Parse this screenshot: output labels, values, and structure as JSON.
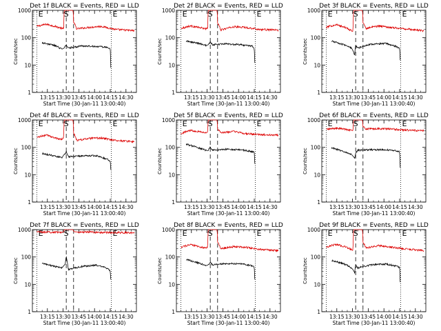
{
  "chart_data": {
    "type": "line",
    "layout": "3x3 grid",
    "y_scale": "log",
    "ylim": [
      1,
      1000
    ],
    "y_ticks": [
      1,
      10,
      100,
      1000
    ],
    "y_tick_labels": [
      "1",
      "10",
      "100",
      "1000"
    ],
    "ylabel": "Counts/sec",
    "xlabel": "Start Time (30-Jan-11 13:00:40)",
    "x_units": "minutes after 13:00",
    "xlim": [
      0.67,
      100
    ],
    "x_ticks": [
      15,
      30,
      45,
      60,
      75,
      90
    ],
    "x_tick_labels": [
      "13:15",
      "13:30",
      "13:45",
      "14:00",
      "14:15",
      "14:30"
    ],
    "markers": [
      {
        "label": "E",
        "x": 5,
        "style": "dotted"
      },
      {
        "label": "S",
        "x": 33,
        "style": "dashed"
      },
      {
        "label": "",
        "x": 40,
        "style": "dashed"
      },
      {
        "label": "E",
        "x": 76,
        "style": "dotted"
      }
    ],
    "colors": {
      "events": "#000000",
      "lld": "#dd0000"
    },
    "panels": [
      {
        "title": "Det 1f BLACK = Events, RED = LLD",
        "events": {
          "x": [
            10,
            22,
            29,
            31,
            32,
            33,
            35,
            48,
            62,
            73,
            75,
            75.5
          ],
          "y": [
            65,
            52,
            38,
            42,
            48,
            55,
            42,
            50,
            48,
            44,
            38,
            8
          ]
        },
        "lld": {
          "x": [
            5,
            14,
            24,
            29.5,
            30,
            30.5,
            31,
            39.5,
            40,
            43,
            55,
            66,
            80,
            98
          ],
          "y": [
            260,
            310,
            250,
            215,
            240,
            160,
            1000,
            1000,
            360,
            210,
            240,
            260,
            200,
            180
          ]
        }
      },
      {
        "title": "Det 2f BLACK = Events, RED = LLD",
        "events": {
          "x": [
            10,
            22,
            29,
            31,
            32,
            33,
            35,
            48,
            62,
            73,
            75,
            75.5
          ],
          "y": [
            75,
            62,
            52,
            55,
            62,
            70,
            55,
            60,
            55,
            50,
            42,
            12
          ]
        },
        "lld": {
          "x": [
            5,
            14,
            24,
            29.5,
            30,
            30.5,
            31,
            39.5,
            40,
            43,
            55,
            66,
            80,
            98
          ],
          "y": [
            220,
            270,
            230,
            210,
            240,
            170,
            1000,
            1000,
            340,
            190,
            250,
            240,
            200,
            190
          ]
        }
      },
      {
        "title": "Det 3f BLACK = Events, RED = LLD",
        "events": {
          "x": [
            10,
            22,
            29,
            31,
            32,
            33,
            35,
            48,
            62,
            73,
            75,
            75.5
          ],
          "y": [
            75,
            55,
            42,
            30,
            22,
            50,
            42,
            58,
            62,
            45,
            40,
            15
          ]
        },
        "lld": {
          "x": [
            5,
            14,
            24,
            29.5,
            30,
            30.5,
            31,
            39.5,
            40,
            43,
            55,
            66,
            80,
            98
          ],
          "y": [
            240,
            300,
            230,
            170,
            170,
            170,
            1000,
            1000,
            350,
            220,
            270,
            240,
            210,
            180
          ]
        }
      },
      {
        "title": "Det 4f BLACK = Events, RED = LLD",
        "events": {
          "x": [
            10,
            22,
            29,
            31,
            32,
            33,
            35,
            48,
            62,
            73,
            75,
            75.5
          ],
          "y": [
            60,
            48,
            42,
            55,
            60,
            70,
            45,
            48,
            50,
            35,
            32,
            15
          ]
        },
        "lld": {
          "x": [
            5,
            14,
            24,
            29.5,
            30,
            30.5,
            31,
            39.5,
            40,
            43,
            55,
            66,
            80,
            98
          ],
          "y": [
            230,
            280,
            210,
            200,
            230,
            200,
            1000,
            1000,
            330,
            180,
            210,
            220,
            180,
            160
          ]
        }
      },
      {
        "title": "Det 5f BLACK = Events, RED = LLD",
        "events": {
          "x": [
            10,
            22,
            29,
            31,
            32,
            33,
            35,
            48,
            62,
            73,
            75,
            75.5
          ],
          "y": [
            130,
            95,
            78,
            75,
            90,
            100,
            78,
            85,
            82,
            70,
            65,
            25
          ]
        },
        "lld": {
          "x": [
            5,
            14,
            24,
            29.5,
            30,
            30.5,
            31,
            39.5,
            40,
            43,
            55,
            66,
            80,
            98
          ],
          "y": [
            320,
            420,
            370,
            340,
            360,
            350,
            1000,
            1000,
            460,
            340,
            380,
            320,
            290,
            280
          ]
        }
      },
      {
        "title": "Det 6f BLACK = Events, RED = LLD",
        "events": {
          "x": [
            10,
            22,
            29,
            31,
            32,
            33,
            35,
            48,
            62,
            73,
            75,
            75.5
          ],
          "y": [
            95,
            70,
            55,
            45,
            40,
            60,
            78,
            82,
            82,
            72,
            68,
            18
          ]
        },
        "lld": {
          "x": [
            5,
            14,
            24,
            29.5,
            30,
            30.5,
            31,
            39.5,
            40,
            43,
            55,
            66,
            80,
            98
          ],
          "y": [
            450,
            500,
            460,
            420,
            400,
            420,
            1000,
            1000,
            560,
            470,
            480,
            470,
            430,
            400
          ]
        }
      },
      {
        "title": "Det 7f BLACK = Events, RED = LLD",
        "events": {
          "x": [
            10,
            22,
            29,
            31,
            32,
            33,
            35,
            48,
            62,
            73,
            75,
            75.5
          ],
          "y": [
            60,
            45,
            40,
            50,
            55,
            100,
            35,
            45,
            50,
            38,
            30,
            15
          ]
        },
        "lld": {
          "x": [
            5,
            14,
            24,
            29.5,
            30,
            30.5,
            31,
            39.5,
            40,
            43,
            55,
            66,
            80,
            98
          ],
          "y": [
            850,
            800,
            820,
            800,
            820,
            800,
            1000,
            1000,
            880,
            800,
            820,
            780,
            790,
            750
          ]
        }
      },
      {
        "title": "Det 8f BLACK = Events, RED = LLD",
        "events": {
          "x": [
            10,
            22,
            29,
            31,
            32,
            33,
            35,
            48,
            62,
            73,
            75,
            75.5
          ],
          "y": [
            80,
            60,
            48,
            52,
            58,
            65,
            52,
            58,
            56,
            48,
            42,
            15
          ]
        },
        "lld": {
          "x": [
            5,
            14,
            24,
            29.5,
            30,
            30.5,
            31,
            39.5,
            40,
            43,
            55,
            66,
            80,
            98
          ],
          "y": [
            230,
            280,
            230,
            210,
            240,
            200,
            1000,
            1000,
            350,
            200,
            240,
            230,
            190,
            170
          ]
        }
      },
      {
        "title": "Det 9f BLACK = Events, RED = LLD",
        "events": {
          "x": [
            10,
            22,
            29,
            31,
            32,
            33,
            35,
            48,
            62,
            73,
            75,
            75.5
          ],
          "y": [
            75,
            55,
            40,
            32,
            25,
            50,
            40,
            52,
            55,
            45,
            40,
            12
          ]
        },
        "lld": {
          "x": [
            5,
            14,
            24,
            29.5,
            30,
            30.5,
            31,
            39.5,
            40,
            43,
            55,
            66,
            80,
            98
          ],
          "y": [
            230,
            290,
            230,
            180,
            170,
            180,
            1000,
            1000,
            340,
            210,
            260,
            230,
            200,
            170
          ]
        }
      }
    ]
  }
}
